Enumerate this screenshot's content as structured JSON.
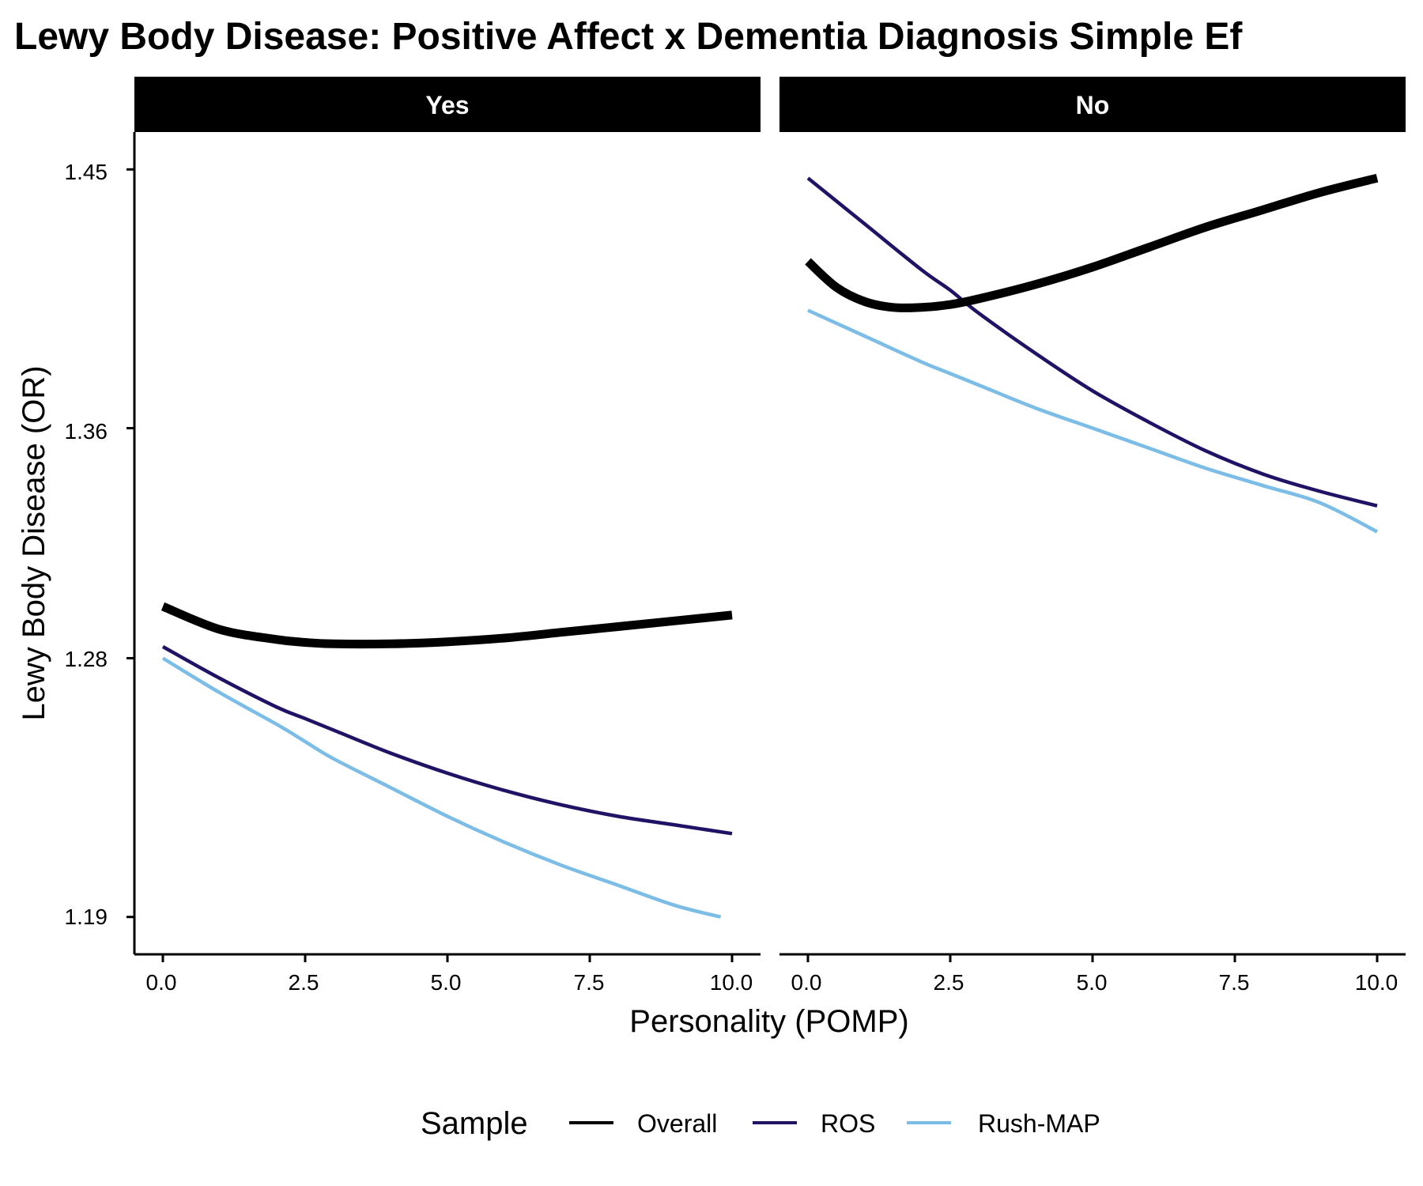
{
  "chart_data": {
    "type": "line",
    "title": "Lewy Body Disease: Positive Affect x Dementia Diagnosis Simple Ef",
    "xlabel": "Personality (POMP)",
    "ylabel": "Lewy Body Disease (OR)",
    "xlim": [
      -0.5,
      10.5
    ],
    "ylim": [
      1.177,
      1.463
    ],
    "x_ticks": [
      "0.0",
      "2.5",
      "5.0",
      "7.5",
      "10.0"
    ],
    "x_tick_values": [
      0,
      2.5,
      5,
      7.5,
      10
    ],
    "y_ticks": [
      "1.19",
      "1.28",
      "1.36",
      "1.45"
    ],
    "y_tick_values": [
      1.19,
      1.28,
      1.36,
      1.45
    ],
    "grid": false,
    "legend": {
      "title": "Sample",
      "position": "bottom",
      "entries": [
        {
          "name": "Overall",
          "color": "#000000"
        },
        {
          "name": "ROS",
          "color": "#221266"
        },
        {
          "name": "Rush-MAP",
          "color": "#7BBDE6"
        }
      ]
    },
    "facets": [
      {
        "label": "Yes",
        "series": [
          {
            "name": "Overall",
            "color": "#000000",
            "x": [
              0,
              1,
              2,
              2.5,
              3,
              4,
              5,
              6,
              7,
              8,
              9,
              10
            ],
            "values": [
              1.298,
              1.29,
              1.2865,
              1.2855,
              1.285,
              1.285,
              1.2857,
              1.287,
              1.289,
              1.291,
              1.293,
              1.295
            ]
          },
          {
            "name": "ROS",
            "color": "#221266",
            "x": [
              0,
              1,
              2,
              2.5,
              3,
              4,
              5,
              6,
              7,
              8,
              9,
              10
            ],
            "values": [
              1.284,
              1.273,
              1.263,
              1.259,
              1.255,
              1.247,
              1.24,
              1.234,
              1.229,
              1.225,
              1.222,
              1.219
            ]
          },
          {
            "name": "Rush-MAP",
            "color": "#7BBDE6",
            "x": [
              0,
              1,
              2,
              2.5,
              3,
              4,
              5,
              6,
              7,
              8,
              9,
              9.8
            ],
            "values": [
              1.28,
              1.268,
              1.257,
              1.251,
              1.245,
              1.235,
              1.225,
              1.216,
              1.208,
              1.201,
              1.194,
              1.19
            ]
          }
        ]
      },
      {
        "label": "No",
        "series": [
          {
            "name": "Overall",
            "color": "#000000",
            "x": [
              0,
              0.5,
              1,
              1.5,
              2,
              2.5,
              3,
              4,
              5,
              6,
              7,
              8,
              9,
              10
            ],
            "values": [
              1.418,
              1.409,
              1.404,
              1.402,
              1.402,
              1.403,
              1.405,
              1.41,
              1.416,
              1.423,
              1.43,
              1.436,
              1.442,
              1.447
            ]
          },
          {
            "name": "ROS",
            "color": "#221266",
            "x": [
              0,
              1,
              2,
              2.5,
              3,
              4,
              5,
              6,
              7,
              8,
              9,
              10
            ],
            "values": [
              1.447,
              1.431,
              1.415,
              1.408,
              1.4,
              1.386,
              1.373,
              1.362,
              1.352,
              1.344,
              1.338,
              1.333
            ]
          },
          {
            "name": "Rush-MAP",
            "color": "#7BBDE6",
            "x": [
              0,
              1,
              2,
              2.5,
              3,
              4,
              5,
              6,
              7,
              8,
              9,
              10
            ],
            "values": [
              1.401,
              1.392,
              1.383,
              1.379,
              1.375,
              1.367,
              1.36,
              1.353,
              1.346,
              1.34,
              1.334,
              1.324
            ]
          }
        ]
      }
    ]
  }
}
